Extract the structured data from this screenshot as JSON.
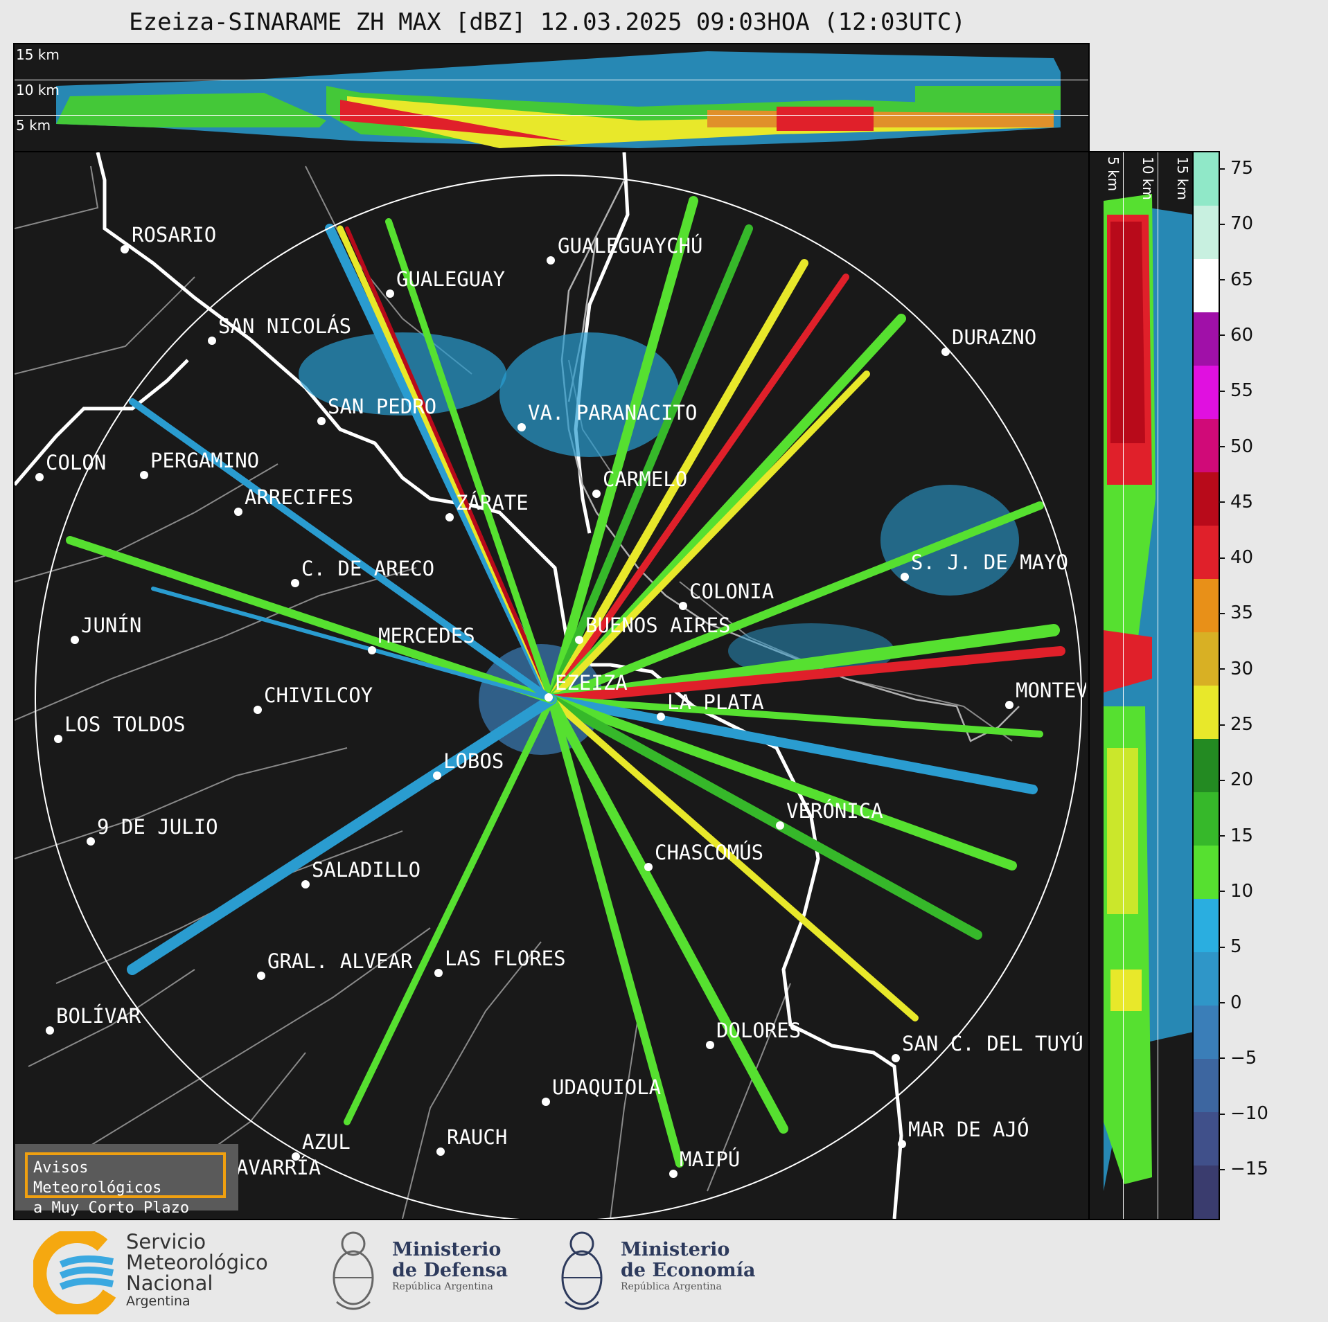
{
  "title": "Ezeiza-SINARAME ZH MAX [dBZ] 12.03.2025 09:03HOA (12:03UTC)",
  "top_panel": {
    "height_labels": [
      "15 km",
      "10 km",
      "5 km"
    ]
  },
  "right_panel": {
    "height_labels": [
      "5 km",
      "10 km",
      "15 km"
    ]
  },
  "colorbar": {
    "ticks": [
      "75",
      "70",
      "65",
      "60",
      "55",
      "50",
      "45",
      "40",
      "35",
      "30",
      "25",
      "20",
      "15",
      "10",
      "5",
      "0",
      "−5",
      "−10",
      "−15"
    ],
    "colors": [
      "#3a3c6e",
      "#40508a",
      "#3d66a0",
      "#3a7eb8",
      "#2f96c8",
      "#2aaee0",
      "#56e030",
      "#36b82a",
      "#238a22",
      "#e8e82a",
      "#d8b024",
      "#e89018",
      "#e0202a",
      "#b80a1a",
      "#d00a78",
      "#e010e0",
      "#a010a8",
      "#ffffff",
      "#c8f0e0",
      "#90e8c8"
    ]
  },
  "cities": [
    {
      "name": "ROSARIO"
    },
    {
      "name": "GUALEGUAYCHÚ"
    },
    {
      "name": "GUALEGUAY"
    },
    {
      "name": "SAN NICOLÁS"
    },
    {
      "name": "DURAZNO"
    },
    {
      "name": "SAN PEDRO"
    },
    {
      "name": "VA. PARANACITO"
    },
    {
      "name": "COLON"
    },
    {
      "name": "PERGAMINO"
    },
    {
      "name": "CARMELO"
    },
    {
      "name": "ARRECIFES"
    },
    {
      "name": "ZÁRATE"
    },
    {
      "name": "S. J. DE MAYO"
    },
    {
      "name": "C. DE ARECO"
    },
    {
      "name": "COLONIA"
    },
    {
      "name": "JUNÍN"
    },
    {
      "name": "BUENOS AIRES"
    },
    {
      "name": "MERCEDES"
    },
    {
      "name": "EZEIZA"
    },
    {
      "name": "MONTEVIDEO"
    },
    {
      "name": "CHIVILCOY"
    },
    {
      "name": "LA PLATA"
    },
    {
      "name": "LOS TOLDOS"
    },
    {
      "name": "LOBOS"
    },
    {
      "name": "VERÓNICA"
    },
    {
      "name": "9 DE JULIO"
    },
    {
      "name": "CHASCOMÚS"
    },
    {
      "name": "SALADILLO"
    },
    {
      "name": "GRAL. ALVEAR"
    },
    {
      "name": "LAS FLORES"
    },
    {
      "name": "BOLÍVAR"
    },
    {
      "name": "DOLORES"
    },
    {
      "name": "SAN C. DEL TUYÚ"
    },
    {
      "name": "UDAQUIOLA"
    },
    {
      "name": "MAR DE AJÓ"
    },
    {
      "name": "AZUL"
    },
    {
      "name": "RAUCH"
    },
    {
      "name": "MAIPÚ"
    },
    {
      "name": "OLAVARRÍA"
    }
  ],
  "notice": {
    "line1": "Avisos Meteorológicos",
    "line2": "a Muy Corto Plazo"
  },
  "logos": {
    "smn": {
      "line1": "Servicio",
      "line2": "Meteorológico",
      "line3": "Nacional",
      "line4": "Argentina"
    },
    "defensa": {
      "line1": "Ministerio",
      "line2": "de Defensa",
      "line3": "República Argentina"
    },
    "economia": {
      "line1": "Ministerio",
      "line2": "de Economía",
      "line3": "República Argentina"
    }
  }
}
